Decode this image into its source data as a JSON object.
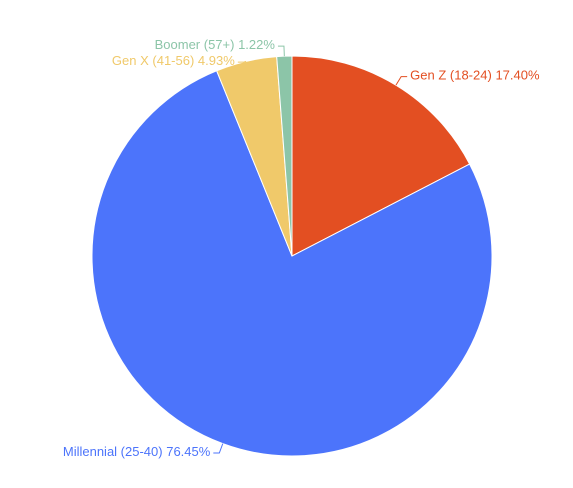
{
  "chart_data": {
    "type": "pie",
    "categories": [
      "Gen Z (18-24)",
      "Millennial (25-40)",
      "Gen X (41-56)",
      "Boomer (57+)"
    ],
    "values": [
      17.4,
      76.45,
      4.93,
      1.22
    ],
    "value_labels": [
      "17.40%",
      "76.45%",
      "4.93%",
      "1.22%"
    ],
    "colors": [
      "#e34f22",
      "#4c74fb",
      "#f0c96a",
      "#8cc5a8"
    ]
  }
}
